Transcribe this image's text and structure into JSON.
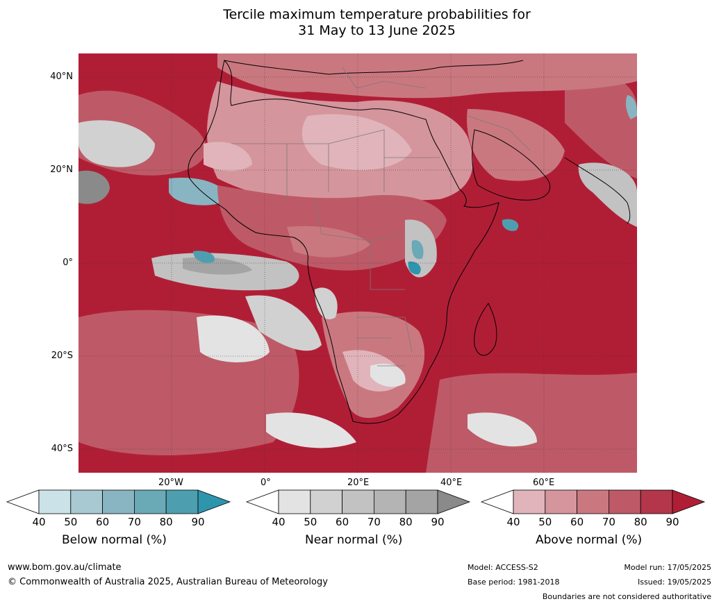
{
  "title_line1": "Tercile maximum temperature probabilities for",
  "title_line2": "31 May to 13 June 2025",
  "lat_labels": [
    "40°N",
    "20°N",
    "0°",
    "20°S",
    "40°S"
  ],
  "lon_labels": [
    "20°W",
    "0°",
    "20°E",
    "40°E",
    "60°E"
  ],
  "colorbars": [
    {
      "title": "Below normal (%)",
      "ticks": [
        "40",
        "50",
        "60",
        "70",
        "80",
        "90"
      ],
      "colors": [
        "#ffffff",
        "#cbe2e8",
        "#a8c9d1",
        "#88b5c1",
        "#6aa9b6",
        "#4d9fb0",
        "#2f95ad"
      ]
    },
    {
      "title": "Near normal (%)",
      "ticks": [
        "40",
        "50",
        "60",
        "70",
        "80",
        "90"
      ],
      "colors": [
        "#ffffff",
        "#e3e3e3",
        "#d1d1d1",
        "#c2c2c2",
        "#b4b4b4",
        "#a4a4a4",
        "#8a8a8a"
      ]
    },
    {
      "title": "Above normal (%)",
      "ticks": [
        "40",
        "50",
        "60",
        "70",
        "80",
        "90"
      ],
      "colors": [
        "#ffffff",
        "#e0b4ba",
        "#d5959d",
        "#ca7880",
        "#be5a67",
        "#b3364a",
        "#b01e36"
      ]
    }
  ],
  "footer": {
    "website": "www.bom.gov.au/climate",
    "copyright": "© Commonwealth of Australia 2025, Australian Bureau of Meteorology",
    "model": "Model: ACCESS-S2",
    "base_period": "Base period: 1981-2018",
    "model_run": "Model run: 17/05/2025",
    "issued": "Issued: 19/05/2025",
    "disclaimer": "Boundaries are not considered authoritative"
  }
}
